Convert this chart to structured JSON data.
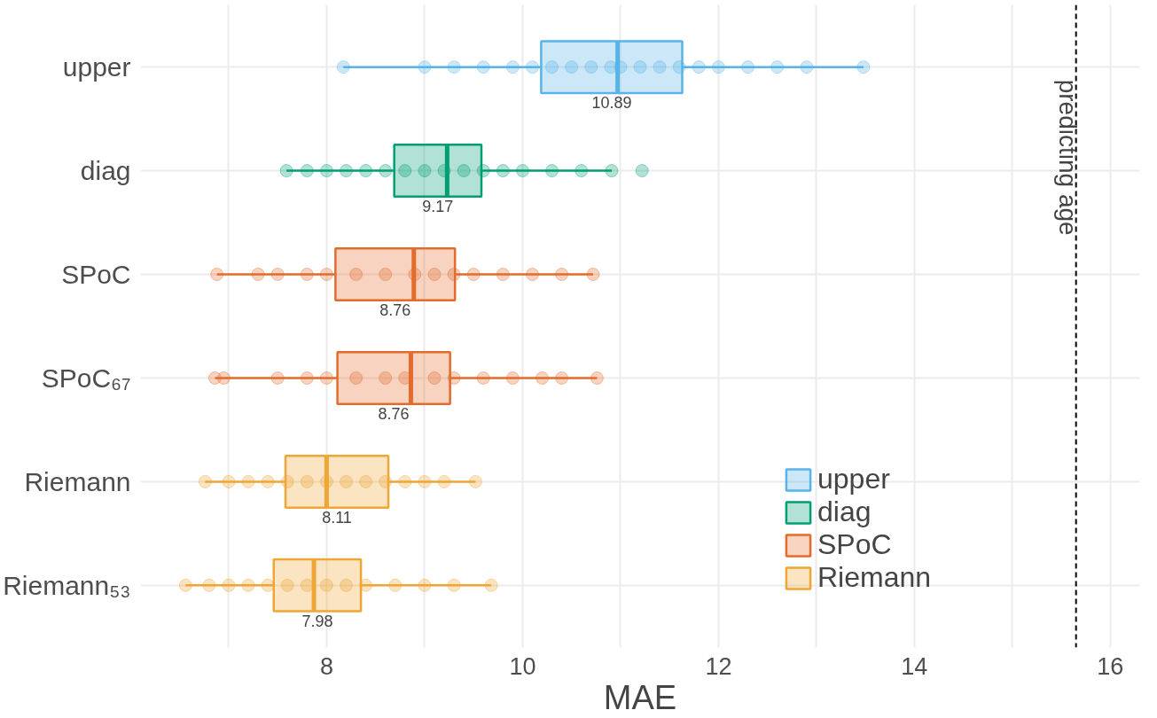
{
  "chart_data": {
    "type": "box",
    "orientation": "horizontal",
    "xlabel": "MAE",
    "categories": [
      "upper",
      "diag",
      "SPoC",
      "SPoC₆₇",
      "Riemann",
      "Riemann₅₃"
    ],
    "xlim": [
      6.1,
      16.3
    ],
    "xticks": [
      {
        "value": 7,
        "label": null
      },
      8,
      {
        "value": 9,
        "label": null
      },
      10,
      {
        "value": 11,
        "label": null
      },
      12,
      {
        "value": 13,
        "label": null
      },
      14,
      {
        "value": 15,
        "label": null
      },
      16
    ],
    "grid": true,
    "legend": "bottom right",
    "marker": "circle",
    "series": [
      {
        "name": "upper",
        "color": "#56b4e9",
        "boxes": [
          {
            "low": 8.17,
            "q1": 10.19,
            "median": 10.97,
            "q3": 11.63,
            "high": 13.48
          },
          null,
          null,
          null,
          null,
          null
        ]
      },
      {
        "name": "diag",
        "color": "#009e73",
        "boxes": [
          null,
          {
            "low": 7.59,
            "q1": 8.69,
            "median": 9.23,
            "q3": 9.58,
            "high": 10.91,
            "outliers": [
              11.22
            ]
          },
          null,
          null,
          null,
          null
        ]
      },
      {
        "name": "SPoC",
        "color": "#e36c2d",
        "boxes": [
          null,
          null,
          {
            "low": 6.88,
            "q1": 8.09,
            "median": 8.89,
            "q3": 9.31,
            "high": 10.72
          },
          {
            "low": 6.86,
            "q1": 8.11,
            "median": 8.86,
            "q3": 9.26,
            "high": 10.76
          },
          null,
          null
        ]
      },
      {
        "name": "Riemann",
        "color": "#f0a635",
        "boxes": [
          null,
          null,
          null,
          null,
          {
            "low": 6.76,
            "q1": 7.58,
            "median": 8.0,
            "q3": 8.63,
            "high": 9.52
          },
          {
            "low": 6.56,
            "q1": 7.46,
            "median": 7.87,
            "q3": 8.35,
            "high": 9.68
          }
        ]
      },
      {
        "type": "scatter",
        "color": "#56b4e9",
        "x": [
          "upper",
          "upper",
          "upper",
          "upper",
          "upper",
          "upper",
          "upper",
          "upper",
          "upper",
          "upper",
          "upper",
          "upper",
          "upper",
          "upper",
          "upper",
          "upper",
          "upper",
          "upper",
          "upper",
          "upper"
        ],
        "values": [
          8.17,
          9.0,
          9.3,
          9.6,
          9.9,
          10.1,
          10.3,
          10.5,
          10.7,
          10.9,
          11.0,
          11.2,
          11.4,
          11.6,
          11.8,
          12.0,
          12.3,
          12.6,
          12.9,
          13.48
        ]
      },
      {
        "type": "scatter",
        "color": "#009e73",
        "x": [
          "diag",
          "diag",
          "diag",
          "diag",
          "diag",
          "diag",
          "diag",
          "diag",
          "diag",
          "diag",
          "diag",
          "diag",
          "diag",
          "diag",
          "diag",
          "diag"
        ],
        "values": [
          7.59,
          7.8,
          8.0,
          8.2,
          8.4,
          8.6,
          8.8,
          9.0,
          9.2,
          9.4,
          9.6,
          9.8,
          10.0,
          10.3,
          10.6,
          10.91
        ]
      },
      {
        "type": "scatter",
        "color": "#e36c2d",
        "x": [
          "SPoC",
          "SPoC",
          "SPoC",
          "SPoC",
          "SPoC",
          "SPoC",
          "SPoC",
          "SPoC",
          "SPoC",
          "SPoC",
          "SPoC",
          "SPoC",
          "SPoC",
          "SPoC",
          "SPoC",
          "SPoC₆₇",
          "SPoC₆₇",
          "SPoC₆₇",
          "SPoC₆₇",
          "SPoC₆₇",
          "SPoC₆₇",
          "SPoC₆₇",
          "SPoC₆₇",
          "SPoC₆₇",
          "SPoC₆₇",
          "SPoC₆₇",
          "SPoC₆₇",
          "SPoC₆₇",
          "SPoC₆₇",
          "SPoC₆₇"
        ],
        "values": [
          6.88,
          7.3,
          7.5,
          7.8,
          8.0,
          8.3,
          8.6,
          8.9,
          9.1,
          9.3,
          9.5,
          9.8,
          10.1,
          10.4,
          10.72,
          6.86,
          6.95,
          7.5,
          7.8,
          8.0,
          8.3,
          8.6,
          8.8,
          9.1,
          9.3,
          9.6,
          9.9,
          10.2,
          10.4,
          10.76
        ]
      },
      {
        "type": "scatter",
        "color": "#f0a635",
        "x": [
          "Riemann",
          "Riemann",
          "Riemann",
          "Riemann",
          "Riemann",
          "Riemann",
          "Riemann",
          "Riemann",
          "Riemann",
          "Riemann",
          "Riemann",
          "Riemann",
          "Riemann",
          "Riemann",
          "Riemann₅₃",
          "Riemann₅₃",
          "Riemann₅₃",
          "Riemann₅₃",
          "Riemann₅₃",
          "Riemann₅₃",
          "Riemann₅₃",
          "Riemann₅₃",
          "Riemann₅₃",
          "Riemann₅₃",
          "Riemann₅₃",
          "Riemann₅₃",
          "Riemann₅₃",
          "Riemann₅₃"
        ],
        "values": [
          6.76,
          7.0,
          7.2,
          7.4,
          7.6,
          7.8,
          8.0,
          8.2,
          8.4,
          8.6,
          8.8,
          9.0,
          9.2,
          9.52,
          6.56,
          6.8,
          7.0,
          7.2,
          7.4,
          7.6,
          7.8,
          8.0,
          8.2,
          8.4,
          8.7,
          9.0,
          9.3,
          9.68
        ]
      }
    ],
    "annotations": [
      "10.89",
      "9.17",
      "8.76",
      "8.76",
      "8.11",
      "7.98"
    ],
    "ref_lines": [
      {
        "axis": "x",
        "value": 15.65,
        "label": "predicting age",
        "color": "#000000",
        "line_style": "dashed"
      }
    ]
  }
}
